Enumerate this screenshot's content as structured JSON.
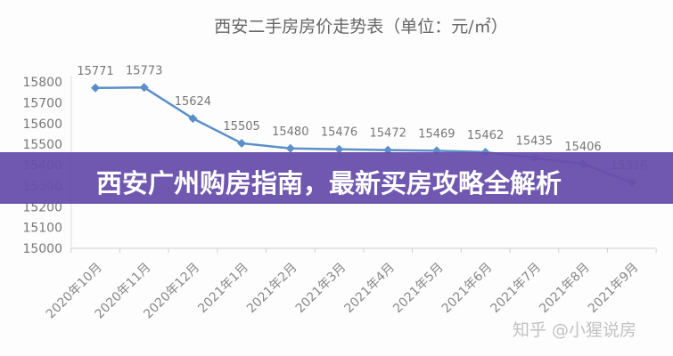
{
  "chart_data": {
    "type": "line",
    "title": "西安二手房房价走势表（单位：元/㎡）",
    "categories": [
      "2020年10月",
      "2020年11月",
      "2020年12月",
      "2021年1月",
      "2021年2月",
      "2021年3月",
      "2021年4月",
      "2021年5月",
      "2021年6月",
      "2021年7月",
      "2021年8月",
      "2021年9月"
    ],
    "values": [
      15771,
      15773,
      15624,
      15505,
      15480,
      15476,
      15472,
      15469,
      15462,
      15435,
      15406,
      15316
    ],
    "ylim": [
      15000,
      15800
    ],
    "yticks": [
      15000,
      15100,
      15200,
      15300,
      15400,
      15500,
      15600,
      15700,
      15800
    ],
    "grid": false,
    "line_color": "#5b8fc9",
    "marker": "diamond"
  },
  "banner": {
    "text": "西安广州购房指南，最新买房攻略全解析",
    "color": "#684eac"
  },
  "watermark": "知乎 @小猩说房"
}
